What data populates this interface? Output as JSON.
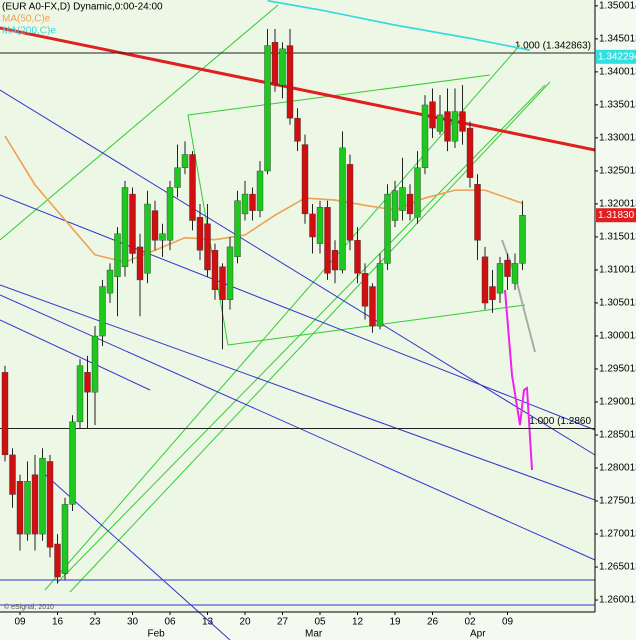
{
  "chart_data": {
    "type": "candlestick",
    "title": "(EUR A0-FX,D) Dynamic,0:00-24:00",
    "categories": [
      null,
      null,
      "09",
      null,
      null,
      null,
      null,
      "16",
      null,
      null,
      null,
      null,
      "23",
      null,
      null,
      null,
      null,
      "30",
      null,
      null,
      null,
      null,
      "06",
      null,
      null,
      null,
      null,
      "13",
      null,
      null,
      null,
      null,
      "20",
      null,
      null,
      null,
      null,
      "27",
      null,
      null,
      null,
      null,
      "05",
      null,
      null,
      null,
      null,
      "12",
      null,
      null,
      null,
      null,
      "19",
      null,
      null,
      null,
      null,
      "26",
      null,
      null,
      null,
      null,
      "02",
      null,
      null,
      null,
      null,
      "09",
      null,
      null
    ],
    "months": [
      {
        "value": 19,
        "label": "Feb"
      },
      {
        "value": 40,
        "label": "Mar"
      },
      {
        "value": 62,
        "label": "Apr"
      }
    ],
    "open": [
      1.2945,
      1.282,
      1.278,
      1.27,
      1.279,
      1.27,
      1.281,
      1.2685,
      1.264,
      1.2745,
      1.287,
      1.2945,
      1.2915,
      1.3,
      1.3065,
      1.309,
      1.3105,
      1.3215,
      1.3135,
      1.3095,
      1.319,
      1.3145,
      1.3145,
      1.3225,
      1.3255,
      1.3275,
      1.318,
      1.317,
      1.313,
      1.3105,
      1.3055,
      1.312,
      1.3185,
      1.3215,
      1.319,
      1.325,
      1.3445,
      1.338,
      1.344,
      1.333,
      1.329,
      1.3185,
      1.314,
      1.3195,
      1.313,
      1.31,
      1.326,
      1.3145,
      1.3095,
      1.3075,
      1.3015,
      1.311,
      1.3175,
      1.319,
      1.3215,
      1.318,
      1.3255,
      1.3355,
      1.331,
      1.334,
      1.3295,
      1.334,
      1.3315,
      1.323,
      1.312,
      1.3075,
      1.3065,
      1.3115,
      1.308,
      1.311
    ],
    "high": [
      1.2955,
      1.283,
      1.279,
      1.281,
      1.282,
      1.283,
      1.282,
      1.27,
      1.2755,
      1.288,
      1.2965,
      1.297,
      1.3015,
      1.3085,
      1.311,
      1.3165,
      1.3235,
      1.3225,
      1.3155,
      1.322,
      1.3205,
      1.317,
      1.3235,
      1.329,
      1.3295,
      1.328,
      1.32,
      1.32,
      1.314,
      1.311,
      1.315,
      1.322,
      1.3235,
      1.3225,
      1.3265,
      1.3465,
      1.3465,
      1.3445,
      1.3465,
      1.3345,
      1.3305,
      1.32,
      1.3205,
      1.3205,
      1.3145,
      1.331,
      1.3275,
      1.3165,
      1.311,
      1.308,
      1.3125,
      1.323,
      1.3235,
      1.327,
      1.323,
      1.328,
      1.3365,
      1.3375,
      1.3365,
      1.3375,
      1.3375,
      1.338,
      1.3325,
      1.3245,
      1.3135,
      1.31,
      1.312,
      1.3125,
      1.3125,
      1.3205
    ],
    "low": [
      1.281,
      1.274,
      1.2675,
      1.269,
      1.2675,
      1.269,
      1.2665,
      1.2625,
      1.263,
      1.2735,
      1.286,
      1.286,
      1.2865,
      1.2985,
      1.305,
      1.303,
      1.309,
      1.311,
      1.303,
      1.308,
      1.313,
      1.312,
      1.313,
      1.321,
      1.3245,
      1.316,
      1.3115,
      1.309,
      1.3055,
      1.298,
      1.304,
      1.311,
      1.3175,
      1.3175,
      1.318,
      1.3245,
      1.337,
      1.336,
      1.332,
      1.328,
      1.317,
      1.3125,
      1.3125,
      1.3085,
      1.308,
      1.3095,
      1.313,
      1.308,
      1.3025,
      1.3005,
      1.301,
      1.31,
      1.3165,
      1.3175,
      1.3175,
      1.317,
      1.3245,
      1.33,
      1.3305,
      1.328,
      1.3285,
      1.329,
      1.3225,
      1.3115,
      1.304,
      1.3035,
      1.305,
      1.307,
      1.307,
      1.31
    ],
    "close": [
      1.282,
      1.276,
      1.27,
      1.278,
      1.27,
      1.2815,
      1.268,
      1.2635,
      1.2745,
      1.287,
      1.2955,
      1.2915,
      1.3,
      1.3075,
      1.31,
      1.3155,
      1.3225,
      1.3125,
      1.3085,
      1.32,
      1.3145,
      1.3155,
      1.3225,
      1.3255,
      1.3275,
      1.3175,
      1.313,
      1.31,
      1.307,
      1.3055,
      1.3135,
      1.3205,
      1.3215,
      1.319,
      1.325,
      1.344,
      1.338,
      1.3435,
      1.333,
      1.3295,
      1.3185,
      1.315,
      1.3195,
      1.3095,
      1.31,
      1.3285,
      1.3145,
      1.3095,
      1.3045,
      1.3015,
      1.311,
      1.3215,
      1.322,
      1.3225,
      1.3185,
      1.3255,
      1.335,
      1.3315,
      1.3335,
      1.3295,
      1.334,
      1.331,
      1.324,
      1.3145,
      1.305,
      1.3055,
      1.311,
      1.309,
      1.311,
      1.3183
    ],
    "up_color": "#1ec81e",
    "down_color": "#d01010",
    "series": [
      {
        "name": "MA(50,C)e",
        "color": "#f0a050",
        "x": [
          0,
          4,
          8,
          12,
          16,
          20,
          24,
          28,
          32,
          36,
          40,
          44,
          48,
          52,
          56,
          60,
          64,
          69
        ],
        "values": [
          1.3303,
          1.3229,
          1.3176,
          1.3123,
          1.3112,
          1.313,
          1.3149,
          1.3146,
          1.3153,
          1.3183,
          1.3209,
          1.3206,
          1.3198,
          1.3191,
          1.3209,
          1.3221,
          1.3221,
          1.3201
        ]
      },
      {
        "name": "MA(200,C)e",
        "color": "#30d8e0",
        "x": [
          35,
          42,
          52,
          62,
          70
        ],
        "values": [
          1.3508,
          1.3494,
          1.3471,
          1.3451,
          1.3433
        ]
      }
    ],
    "levels": [
      {
        "value": 1.342863,
        "label": "1.000 (1.342863)"
      },
      {
        "value": 1.286,
        "label": "1.000 (1.2860"
      }
    ],
    "price_tags": [
      {
        "value": 1.3183,
        "label": "1.31830",
        "color": "#e02020"
      },
      {
        "value": 1.342294,
        "color": "#30e0e0"
      }
    ],
    "ylim": [
      1.2582,
      1.3509
    ],
    "yticks": [
      1.350014,
      1.345013,
      1.340013,
      1.335013,
      1.330013,
      1.325013,
      1.320013,
      1.315013,
      1.310013,
      1.305013,
      1.300013,
      1.295013,
      1.290013,
      1.285013,
      1.280013,
      1.275013,
      1.270013,
      1.265013,
      1.260013
    ],
    "copyright": "© eSignal, 2010"
  }
}
